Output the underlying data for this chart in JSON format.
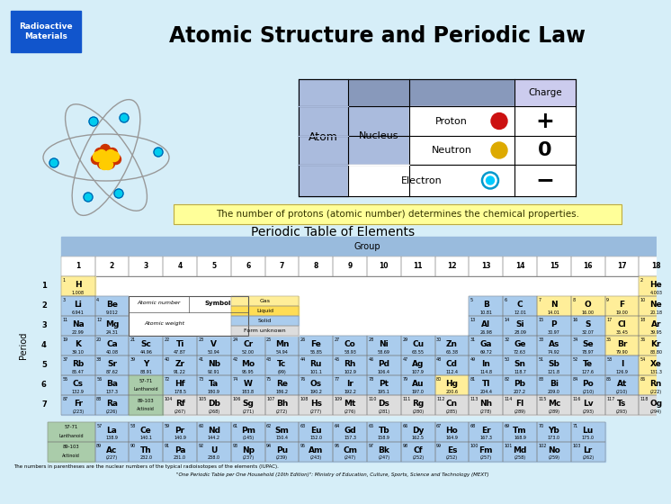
{
  "title": "Atomic Structure and Periodic Law",
  "bg_color": "#d6eef8",
  "header_bg": "#1155cc",
  "header_text": "Radioactive\nMaterials",
  "yellow_note": "The number of protons (atomic number) determines the chemical properties.",
  "periodic_title": "Periodic Table of Elements",
  "footnote1": "The numbers in parentheses are the nuclear numbers of the typical radioisotopes of the elements (IUPAC).",
  "footnote2": "\"One Periodic Table per One Household (10th Edition)\": Ministry of Education, Culture, Sports, Science and Technology (MEXT)",
  "type_colors": {
    "gas": "#ffee99",
    "liquid": "#ffee99",
    "solid": "#aacced",
    "unknown": "#dddddd",
    "lanthanoid_block": "#aaccaa"
  },
  "elements": [
    {
      "sym": "H",
      "num": 1,
      "wt": "1.008",
      "row": 1,
      "col": 1,
      "type": "gas"
    },
    {
      "sym": "He",
      "num": 2,
      "wt": "4.003",
      "row": 1,
      "col": 18,
      "type": "gas"
    },
    {
      "sym": "Li",
      "num": 3,
      "wt": "6.941",
      "row": 2,
      "col": 1,
      "type": "solid"
    },
    {
      "sym": "Be",
      "num": 4,
      "wt": "9.012",
      "row": 2,
      "col": 2,
      "type": "solid"
    },
    {
      "sym": "B",
      "num": 5,
      "wt": "10.81",
      "row": 2,
      "col": 13,
      "type": "solid"
    },
    {
      "sym": "C",
      "num": 6,
      "wt": "12.01",
      "row": 2,
      "col": 14,
      "type": "solid"
    },
    {
      "sym": "N",
      "num": 7,
      "wt": "14.01",
      "row": 2,
      "col": 15,
      "type": "gas"
    },
    {
      "sym": "O",
      "num": 8,
      "wt": "16.00",
      "row": 2,
      "col": 16,
      "type": "gas"
    },
    {
      "sym": "F",
      "num": 9,
      "wt": "19.00",
      "row": 2,
      "col": 17,
      "type": "gas"
    },
    {
      "sym": "Ne",
      "num": 10,
      "wt": "20.18",
      "row": 2,
      "col": 18,
      "type": "gas"
    },
    {
      "sym": "Na",
      "num": 11,
      "wt": "22.99",
      "row": 3,
      "col": 1,
      "type": "solid"
    },
    {
      "sym": "Mg",
      "num": 12,
      "wt": "24.31",
      "row": 3,
      "col": 2,
      "type": "solid"
    },
    {
      "sym": "Al",
      "num": 13,
      "wt": "26.98",
      "row": 3,
      "col": 13,
      "type": "solid"
    },
    {
      "sym": "Si",
      "num": 14,
      "wt": "28.09",
      "row": 3,
      "col": 14,
      "type": "solid"
    },
    {
      "sym": "P",
      "num": 15,
      "wt": "30.97",
      "row": 3,
      "col": 15,
      "type": "solid"
    },
    {
      "sym": "S",
      "num": 16,
      "wt": "32.07",
      "row": 3,
      "col": 16,
      "type": "solid"
    },
    {
      "sym": "Cl",
      "num": 17,
      "wt": "35.45",
      "row": 3,
      "col": 17,
      "type": "gas"
    },
    {
      "sym": "Ar",
      "num": 18,
      "wt": "39.95",
      "row": 3,
      "col": 18,
      "type": "gas"
    },
    {
      "sym": "K",
      "num": 19,
      "wt": "39.10",
      "row": 4,
      "col": 1,
      "type": "solid"
    },
    {
      "sym": "Ca",
      "num": 20,
      "wt": "40.08",
      "row": 4,
      "col": 2,
      "type": "solid"
    },
    {
      "sym": "Sc",
      "num": 21,
      "wt": "44.96",
      "row": 4,
      "col": 3,
      "type": "solid"
    },
    {
      "sym": "Ti",
      "num": 22,
      "wt": "47.87",
      "row": 4,
      "col": 4,
      "type": "solid"
    },
    {
      "sym": "V",
      "num": 23,
      "wt": "50.94",
      "row": 4,
      "col": 5,
      "type": "solid"
    },
    {
      "sym": "Cr",
      "num": 24,
      "wt": "52.00",
      "row": 4,
      "col": 6,
      "type": "solid"
    },
    {
      "sym": "Mn",
      "num": 25,
      "wt": "54.94",
      "row": 4,
      "col": 7,
      "type": "solid"
    },
    {
      "sym": "Fe",
      "num": 26,
      "wt": "55.85",
      "row": 4,
      "col": 8,
      "type": "solid"
    },
    {
      "sym": "Co",
      "num": 27,
      "wt": "58.93",
      "row": 4,
      "col": 9,
      "type": "solid"
    },
    {
      "sym": "Ni",
      "num": 28,
      "wt": "58.69",
      "row": 4,
      "col": 10,
      "type": "solid"
    },
    {
      "sym": "Cu",
      "num": 29,
      "wt": "63.55",
      "row": 4,
      "col": 11,
      "type": "solid"
    },
    {
      "sym": "Zn",
      "num": 30,
      "wt": "65.38",
      "row": 4,
      "col": 12,
      "type": "solid"
    },
    {
      "sym": "Ga",
      "num": 31,
      "wt": "69.72",
      "row": 4,
      "col": 13,
      "type": "solid"
    },
    {
      "sym": "Ge",
      "num": 32,
      "wt": "72.63",
      "row": 4,
      "col": 14,
      "type": "solid"
    },
    {
      "sym": "As",
      "num": 33,
      "wt": "74.92",
      "row": 4,
      "col": 15,
      "type": "solid"
    },
    {
      "sym": "Se",
      "num": 34,
      "wt": "78.97",
      "row": 4,
      "col": 16,
      "type": "solid"
    },
    {
      "sym": "Br",
      "num": 35,
      "wt": "79.90",
      "row": 4,
      "col": 17,
      "type": "liquid"
    },
    {
      "sym": "Kr",
      "num": 36,
      "wt": "83.80",
      "row": 4,
      "col": 18,
      "type": "gas"
    },
    {
      "sym": "Rb",
      "num": 37,
      "wt": "85.47",
      "row": 5,
      "col": 1,
      "type": "solid"
    },
    {
      "sym": "Sr",
      "num": 38,
      "wt": "87.62",
      "row": 5,
      "col": 2,
      "type": "solid"
    },
    {
      "sym": "Y",
      "num": 39,
      "wt": "88.91",
      "row": 5,
      "col": 3,
      "type": "solid"
    },
    {
      "sym": "Zr",
      "num": 40,
      "wt": "91.22",
      "row": 5,
      "col": 4,
      "type": "solid"
    },
    {
      "sym": "Nb",
      "num": 41,
      "wt": "92.91",
      "row": 5,
      "col": 5,
      "type": "solid"
    },
    {
      "sym": "Mo",
      "num": 42,
      "wt": "95.95",
      "row": 5,
      "col": 6,
      "type": "solid"
    },
    {
      "sym": "Tc",
      "num": 43,
      "wt": "(99)",
      "row": 5,
      "col": 7,
      "type": "solid"
    },
    {
      "sym": "Ru",
      "num": 44,
      "wt": "101.1",
      "row": 5,
      "col": 8,
      "type": "solid"
    },
    {
      "sym": "Rh",
      "num": 45,
      "wt": "102.9",
      "row": 5,
      "col": 9,
      "type": "solid"
    },
    {
      "sym": "Pd",
      "num": 46,
      "wt": "106.4",
      "row": 5,
      "col": 10,
      "type": "solid"
    },
    {
      "sym": "Ag",
      "num": 47,
      "wt": "107.9",
      "row": 5,
      "col": 11,
      "type": "solid"
    },
    {
      "sym": "Cd",
      "num": 48,
      "wt": "112.4",
      "row": 5,
      "col": 12,
      "type": "solid"
    },
    {
      "sym": "In",
      "num": 49,
      "wt": "114.8",
      "row": 5,
      "col": 13,
      "type": "solid"
    },
    {
      "sym": "Sn",
      "num": 50,
      "wt": "118.7",
      "row": 5,
      "col": 14,
      "type": "solid"
    },
    {
      "sym": "Sb",
      "num": 51,
      "wt": "121.8",
      "row": 5,
      "col": 15,
      "type": "solid"
    },
    {
      "sym": "Te",
      "num": 52,
      "wt": "127.6",
      "row": 5,
      "col": 16,
      "type": "solid"
    },
    {
      "sym": "I",
      "num": 53,
      "wt": "126.9",
      "row": 5,
      "col": 17,
      "type": "solid"
    },
    {
      "sym": "Xe",
      "num": 54,
      "wt": "131.3",
      "row": 5,
      "col": 18,
      "type": "gas"
    },
    {
      "sym": "Cs",
      "num": 55,
      "wt": "132.9",
      "row": 6,
      "col": 1,
      "type": "solid"
    },
    {
      "sym": "Ba",
      "num": 56,
      "wt": "137.3",
      "row": 6,
      "col": 2,
      "type": "solid"
    },
    {
      "sym": "Hf",
      "num": 72,
      "wt": "178.5",
      "row": 6,
      "col": 4,
      "type": "solid"
    },
    {
      "sym": "Ta",
      "num": 73,
      "wt": "180.9",
      "row": 6,
      "col": 5,
      "type": "solid"
    },
    {
      "sym": "W",
      "num": 74,
      "wt": "183.8",
      "row": 6,
      "col": 6,
      "type": "solid"
    },
    {
      "sym": "Re",
      "num": 75,
      "wt": "186.2",
      "row": 6,
      "col": 7,
      "type": "solid"
    },
    {
      "sym": "Os",
      "num": 76,
      "wt": "190.2",
      "row": 6,
      "col": 8,
      "type": "solid"
    },
    {
      "sym": "Ir",
      "num": 77,
      "wt": "192.2",
      "row": 6,
      "col": 9,
      "type": "solid"
    },
    {
      "sym": "Pt",
      "num": 78,
      "wt": "195.1",
      "row": 6,
      "col": 10,
      "type": "solid"
    },
    {
      "sym": "Au",
      "num": 79,
      "wt": "197.0",
      "row": 6,
      "col": 11,
      "type": "solid"
    },
    {
      "sym": "Hg",
      "num": 80,
      "wt": "200.6",
      "row": 6,
      "col": 12,
      "type": "liquid"
    },
    {
      "sym": "Tl",
      "num": 81,
      "wt": "204.4",
      "row": 6,
      "col": 13,
      "type": "solid"
    },
    {
      "sym": "Pb",
      "num": 82,
      "wt": "207.2",
      "row": 6,
      "col": 14,
      "type": "solid"
    },
    {
      "sym": "Bi",
      "num": 83,
      "wt": "209.0",
      "row": 6,
      "col": 15,
      "type": "solid"
    },
    {
      "sym": "Po",
      "num": 84,
      "wt": "(210)",
      "row": 6,
      "col": 16,
      "type": "solid"
    },
    {
      "sym": "At",
      "num": 85,
      "wt": "(210)",
      "row": 6,
      "col": 17,
      "type": "solid"
    },
    {
      "sym": "Rn",
      "num": 86,
      "wt": "(222)",
      "row": 6,
      "col": 18,
      "type": "gas"
    },
    {
      "sym": "Fr",
      "num": 87,
      "wt": "(223)",
      "row": 7,
      "col": 1,
      "type": "solid"
    },
    {
      "sym": "Ra",
      "num": 88,
      "wt": "(226)",
      "row": 7,
      "col": 2,
      "type": "solid"
    },
    {
      "sym": "Rf",
      "num": 104,
      "wt": "(267)",
      "row": 7,
      "col": 4,
      "type": "unknown"
    },
    {
      "sym": "Db",
      "num": 105,
      "wt": "(268)",
      "row": 7,
      "col": 5,
      "type": "unknown"
    },
    {
      "sym": "Sg",
      "num": 106,
      "wt": "(271)",
      "row": 7,
      "col": 6,
      "type": "unknown"
    },
    {
      "sym": "Bh",
      "num": 107,
      "wt": "(272)",
      "row": 7,
      "col": 7,
      "type": "unknown"
    },
    {
      "sym": "Hs",
      "num": 108,
      "wt": "(277)",
      "row": 7,
      "col": 8,
      "type": "unknown"
    },
    {
      "sym": "Mt",
      "num": 109,
      "wt": "(276)",
      "row": 7,
      "col": 9,
      "type": "unknown"
    },
    {
      "sym": "Ds",
      "num": 110,
      "wt": "(281)",
      "row": 7,
      "col": 10,
      "type": "unknown"
    },
    {
      "sym": "Rg",
      "num": 111,
      "wt": "(280)",
      "row": 7,
      "col": 11,
      "type": "unknown"
    },
    {
      "sym": "Cn",
      "num": 112,
      "wt": "(285)",
      "row": 7,
      "col": 12,
      "type": "unknown"
    },
    {
      "sym": "Nh",
      "num": 113,
      "wt": "(278)",
      "row": 7,
      "col": 13,
      "type": "unknown"
    },
    {
      "sym": "Fl",
      "num": 114,
      "wt": "(289)",
      "row": 7,
      "col": 14,
      "type": "unknown"
    },
    {
      "sym": "Mc",
      "num": 115,
      "wt": "(289)",
      "row": 7,
      "col": 15,
      "type": "unknown"
    },
    {
      "sym": "Lv",
      "num": 116,
      "wt": "(293)",
      "row": 7,
      "col": 16,
      "type": "unknown"
    },
    {
      "sym": "Ts",
      "num": 117,
      "wt": "(293)",
      "row": 7,
      "col": 17,
      "type": "unknown"
    },
    {
      "sym": "Og",
      "num": 118,
      "wt": "(294)",
      "row": 7,
      "col": 18,
      "type": "unknown"
    },
    {
      "sym": "La",
      "num": 57,
      "wt": "138.9",
      "row": 9,
      "col": 2,
      "type": "solid"
    },
    {
      "sym": "Ce",
      "num": 58,
      "wt": "140.1",
      "row": 9,
      "col": 3,
      "type": "solid"
    },
    {
      "sym": "Pr",
      "num": 59,
      "wt": "140.9",
      "row": 9,
      "col": 4,
      "type": "solid"
    },
    {
      "sym": "Nd",
      "num": 60,
      "wt": "144.2",
      "row": 9,
      "col": 5,
      "type": "solid"
    },
    {
      "sym": "Pm",
      "num": 61,
      "wt": "(145)",
      "row": 9,
      "col": 6,
      "type": "solid"
    },
    {
      "sym": "Sm",
      "num": 62,
      "wt": "150.4",
      "row": 9,
      "col": 7,
      "type": "solid"
    },
    {
      "sym": "Eu",
      "num": 63,
      "wt": "152.0",
      "row": 9,
      "col": 8,
      "type": "solid"
    },
    {
      "sym": "Gd",
      "num": 64,
      "wt": "157.3",
      "row": 9,
      "col": 9,
      "type": "solid"
    },
    {
      "sym": "Tb",
      "num": 65,
      "wt": "158.9",
      "row": 9,
      "col": 10,
      "type": "solid"
    },
    {
      "sym": "Dy",
      "num": 66,
      "wt": "162.5",
      "row": 9,
      "col": 11,
      "type": "solid"
    },
    {
      "sym": "Ho",
      "num": 67,
      "wt": "164.9",
      "row": 9,
      "col": 12,
      "type": "solid"
    },
    {
      "sym": "Er",
      "num": 68,
      "wt": "167.3",
      "row": 9,
      "col": 13,
      "type": "solid"
    },
    {
      "sym": "Tm",
      "num": 69,
      "wt": "168.9",
      "row": 9,
      "col": 14,
      "type": "solid"
    },
    {
      "sym": "Yb",
      "num": 70,
      "wt": "173.0",
      "row": 9,
      "col": 15,
      "type": "solid"
    },
    {
      "sym": "Lu",
      "num": 71,
      "wt": "175.0",
      "row": 9,
      "col": 16,
      "type": "solid"
    },
    {
      "sym": "Ac",
      "num": 89,
      "wt": "(227)",
      "row": 10,
      "col": 2,
      "type": "solid"
    },
    {
      "sym": "Th",
      "num": 90,
      "wt": "232.0",
      "row": 10,
      "col": 3,
      "type": "solid"
    },
    {
      "sym": "Pa",
      "num": 91,
      "wt": "231.0",
      "row": 10,
      "col": 4,
      "type": "solid"
    },
    {
      "sym": "U",
      "num": 92,
      "wt": "238.0",
      "row": 10,
      "col": 5,
      "type": "solid"
    },
    {
      "sym": "Np",
      "num": 93,
      "wt": "(237)",
      "row": 10,
      "col": 6,
      "type": "solid"
    },
    {
      "sym": "Pu",
      "num": 94,
      "wt": "(239)",
      "row": 10,
      "col": 7,
      "type": "solid"
    },
    {
      "sym": "Am",
      "num": 95,
      "wt": "(243)",
      "row": 10,
      "col": 8,
      "type": "solid"
    },
    {
      "sym": "Cm",
      "num": 96,
      "wt": "(247)",
      "row": 10,
      "col": 9,
      "type": "solid"
    },
    {
      "sym": "Bk",
      "num": 97,
      "wt": "(247)",
      "row": 10,
      "col": 10,
      "type": "solid"
    },
    {
      "sym": "Cf",
      "num": 98,
      "wt": "(252)",
      "row": 10,
      "col": 11,
      "type": "solid"
    },
    {
      "sym": "Es",
      "num": 99,
      "wt": "(252)",
      "row": 10,
      "col": 12,
      "type": "solid"
    },
    {
      "sym": "Fm",
      "num": 100,
      "wt": "(257)",
      "row": 10,
      "col": 13,
      "type": "solid"
    },
    {
      "sym": "Md",
      "num": 101,
      "wt": "(258)",
      "row": 10,
      "col": 14,
      "type": "solid"
    },
    {
      "sym": "No",
      "num": 102,
      "wt": "(259)",
      "row": 10,
      "col": 15,
      "type": "solid"
    },
    {
      "sym": "Lr",
      "num": 103,
      "wt": "(262)",
      "row": 10,
      "col": 16,
      "type": "solid"
    }
  ]
}
